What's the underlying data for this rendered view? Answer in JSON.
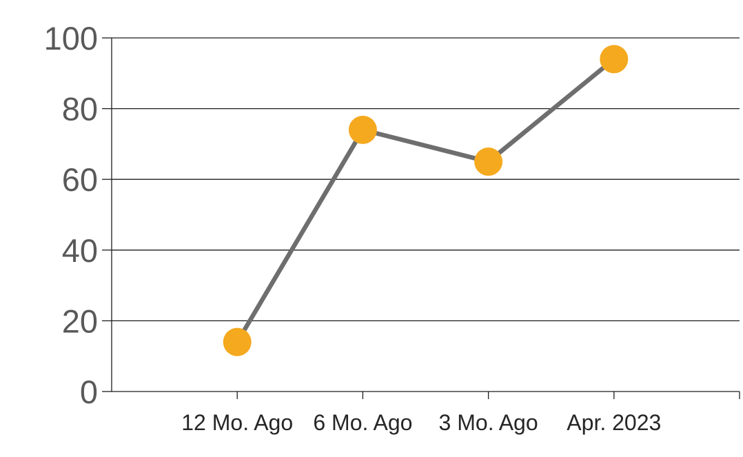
{
  "chart_data": {
    "type": "line",
    "categories": [
      "12 Mo. Ago",
      "6 Mo. Ago",
      "3 Mo. Ago",
      "Apr. 2023"
    ],
    "values": [
      14,
      74,
      65,
      94
    ],
    "title": "",
    "xlabel": "",
    "ylabel": "",
    "ylim": [
      0,
      100
    ],
    "yticks": [
      0,
      20,
      40,
      60,
      80,
      100
    ],
    "grid": true,
    "legend": false,
    "colors": {
      "marker": "#F5A91F",
      "line": "#6E6E6E",
      "axis_and_grid": "#1C1C1C",
      "ytick_label": "#595959",
      "xtick_label": "#262626",
      "background": "#FFFFFF"
    }
  }
}
